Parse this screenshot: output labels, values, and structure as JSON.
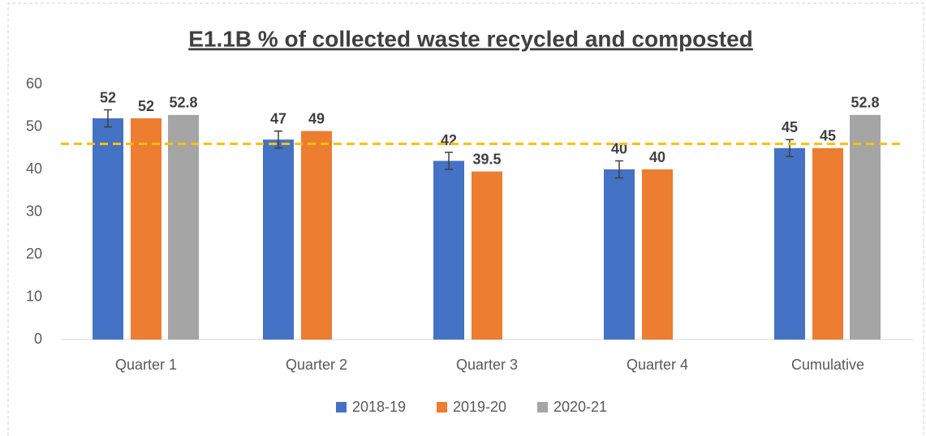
{
  "chart_data": {
    "type": "bar",
    "title": "E1.1B % of collected waste recycled and composted",
    "categories": [
      "Quarter 1",
      "Quarter 2",
      "Quarter 3",
      "Quarter 4",
      "Cumulative"
    ],
    "series": [
      {
        "name": "2018-19",
        "color": "#4472c4",
        "values": [
          52,
          47,
          42,
          40,
          45
        ],
        "errors": [
          2,
          2,
          2,
          2,
          2
        ]
      },
      {
        "name": "2019-20",
        "color": "#ed7d31",
        "values": [
          52,
          49,
          39.5,
          40,
          45
        ]
      },
      {
        "name": "2020-21",
        "color": "#a5a5a5",
        "values": [
          52.8,
          null,
          null,
          null,
          52.8
        ]
      }
    ],
    "reference_line": {
      "value": 46,
      "color": "#ffc000"
    },
    "ylim": [
      0,
      60
    ],
    "yticks": [
      0,
      10,
      20,
      30,
      40,
      50,
      60
    ],
    "grid": false,
    "legend": "bottom"
  }
}
